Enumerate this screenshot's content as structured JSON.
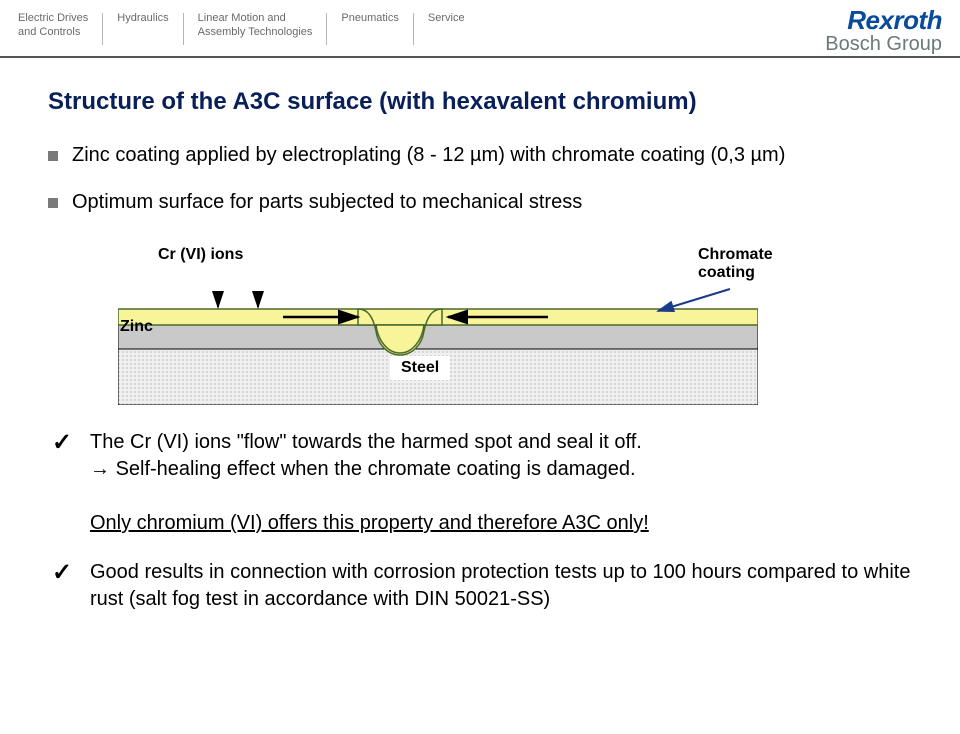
{
  "header": {
    "cols": [
      "Electric Drives\nand Controls",
      "Hydraulics",
      "Linear Motion and\nAssembly Technologies",
      "Pneumatics",
      "Service"
    ],
    "brand_top": "Rexroth",
    "brand_bottom": "Bosch Group"
  },
  "title": "Structure of the A3C surface (with hexavalent chromium)",
  "bullets": [
    "Zinc coating applied by electroplating (8 - 12 µm) with chromate coating (0,3 µm)",
    "Optimum surface for parts subjected to mechanical stress"
  ],
  "diagram": {
    "label_crvi": "Cr (VI) ions",
    "label_chromate_l1": "Chromate",
    "label_chromate_l2": "coating",
    "label_zinc": "Zinc",
    "label_steel": "Steel",
    "colors": {
      "chromate_fill": "#f8f49a",
      "chromate_stroke": "#4a6a2a",
      "zinc_fill": "#c9c9c9",
      "zinc_stroke": "#000000",
      "steel_fill": "#e6e6e6",
      "steel_dot": "#888888",
      "arrow": "#000000",
      "chromate_pointer": "#1a3a8a"
    }
  },
  "checks": [
    {
      "line1": "The Cr (VI) ions \"flow\" towards the harmed spot and seal it off.",
      "line2_arrow": "Self-healing effect when the chromate coating is damaged.",
      "line3_underline": "Only chromium (VI) offers this property and therefore A3C only!"
    },
    {
      "line1": "Good results in connection with corrosion protection tests up to 100 hours compared to white rust (salt fog test in accordance with DIN 50021-SS)"
    }
  ]
}
